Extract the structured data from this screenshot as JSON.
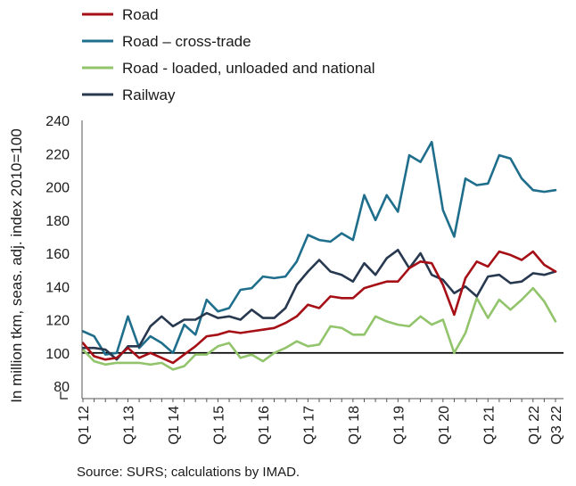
{
  "chart_data": {
    "type": "line",
    "title": "",
    "xlabel": "",
    "ylabel": "In million tkm, seas. adj. index 2010=100",
    "ylim": [
      80,
      240
    ],
    "yticks": [
      80,
      100,
      120,
      140,
      160,
      180,
      200,
      220,
      240
    ],
    "axis_break_marker": true,
    "legend_position": "top-left",
    "reference_line": 100,
    "source": "Source: SURS; calculations by IMAD.",
    "x": [
      "Q1 12",
      "Q2 12",
      "Q3 12",
      "Q4 12",
      "Q1 13",
      "Q2 13",
      "Q3 13",
      "Q4 13",
      "Q1 14",
      "Q2 14",
      "Q3 14",
      "Q4 14",
      "Q1 15",
      "Q2 15",
      "Q3 15",
      "Q4 15",
      "Q1 16",
      "Q2 16",
      "Q3 16",
      "Q4 16",
      "Q1 17",
      "Q2 17",
      "Q3 17",
      "Q4 17",
      "Q1 18",
      "Q2 18",
      "Q3 18",
      "Q4 18",
      "Q1 19",
      "Q2 19",
      "Q3 19",
      "Q4 19",
      "Q1 20",
      "Q2 20",
      "Q3 20",
      "Q4 20",
      "Q1 21",
      "Q2 21",
      "Q3 21",
      "Q4 21",
      "Q1 22",
      "Q2 22",
      "Q3 22"
    ],
    "xtick_labels": [
      "Q1 12",
      "Q1 13",
      "Q1 14",
      "Q1 15",
      "Q1 16",
      "Q1 17",
      "Q1 18",
      "Q1 19",
      "Q1 20",
      "Q1 21",
      "Q1 22",
      "Q3 22"
    ],
    "series": [
      {
        "name": "Road",
        "color": "#a50f15",
        "values": [
          106,
          98,
          96,
          97,
          103,
          97,
          100,
          97,
          94,
          99,
          104,
          110,
          111,
          113,
          112,
          113,
          114,
          115,
          118,
          122,
          129,
          127,
          134,
          133,
          133,
          139,
          141,
          143,
          143,
          151,
          155,
          154,
          141,
          123,
          145,
          155,
          152,
          161,
          159,
          156,
          161,
          153,
          149
        ]
      },
      {
        "name": "Road – cross-trade",
        "color": "#1f6e8c",
        "values": [
          113,
          110,
          99,
          100,
          122,
          103,
          110,
          106,
          100,
          117,
          111,
          132,
          125,
          127,
          138,
          139,
          146,
          145,
          146,
          155,
          171,
          168,
          167,
          172,
          168,
          195,
          180,
          195,
          185,
          219,
          215,
          227,
          186,
          170,
          205,
          201,
          202,
          219,
          217,
          205,
          198,
          197,
          198
        ]
      },
      {
        "name": "Road - loaded, unloaded and national",
        "color": "#92c46c",
        "values": [
          102,
          95,
          93,
          94,
          94,
          94,
          93,
          94,
          90,
          92,
          99,
          99,
          104,
          106,
          97,
          99,
          95,
          100,
          103,
          107,
          104,
          105,
          116,
          115,
          111,
          111,
          122,
          119,
          117,
          116,
          122,
          117,
          120,
          100,
          112,
          133,
          121,
          132,
          126,
          132,
          139,
          131,
          119
        ]
      },
      {
        "name": "Railway",
        "color": "#27384f",
        "values": [
          103,
          103,
          102,
          96,
          104,
          104,
          116,
          122,
          116,
          120,
          120,
          124,
          121,
          122,
          120,
          126,
          121,
          121,
          127,
          141,
          149,
          156,
          149,
          147,
          143,
          154,
          147,
          157,
          162,
          151,
          160,
          147,
          144,
          136,
          140,
          134,
          146,
          147,
          142,
          143,
          148,
          147,
          149
        ]
      }
    ]
  }
}
